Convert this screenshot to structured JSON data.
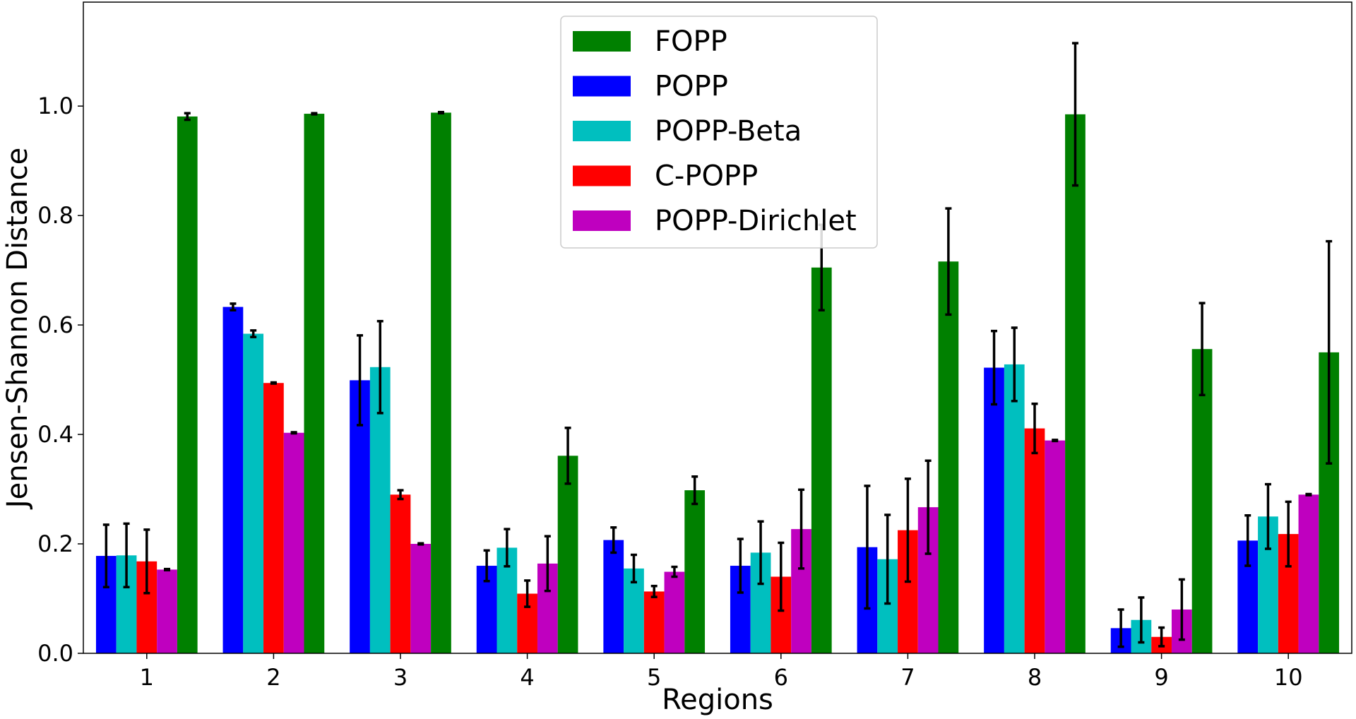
{
  "chart_data": {
    "type": "bar",
    "title": "",
    "xlabel": "Regions",
    "ylabel": "Jensen-Shannon Distance",
    "categories": [
      "1",
      "2",
      "3",
      "4",
      "5",
      "6",
      "7",
      "8",
      "9",
      "10"
    ],
    "ylim": [
      0,
      1.19
    ],
    "yticks": [
      "0.0",
      "0.2",
      "0.4",
      "0.6",
      "0.8",
      "1.0"
    ],
    "grid": false,
    "legend_position": "top-center",
    "series": [
      {
        "name": "POPP",
        "color": "#0000ff",
        "values": [
          0.178,
          0.633,
          0.499,
          0.16,
          0.207,
          0.16,
          0.194,
          0.522,
          0.046,
          0.206
        ],
        "errors": [
          0.057,
          0.006,
          0.082,
          0.028,
          0.023,
          0.049,
          0.112,
          0.067,
          0.034,
          0.046
        ]
      },
      {
        "name": "POPP-Beta",
        "color": "#00bfbf",
        "values": [
          0.179,
          0.584,
          0.523,
          0.193,
          0.155,
          0.184,
          0.172,
          0.528,
          0.061,
          0.25
        ],
        "errors": [
          0.058,
          0.006,
          0.084,
          0.034,
          0.025,
          0.057,
          0.081,
          0.067,
          0.041,
          0.059
        ]
      },
      {
        "name": "C-POPP",
        "color": "#ff0000",
        "values": [
          0.168,
          0.494,
          0.29,
          0.109,
          0.113,
          0.14,
          0.225,
          0.411,
          0.03,
          0.218
        ],
        "errors": [
          0.058,
          0.001,
          0.008,
          0.024,
          0.01,
          0.062,
          0.094,
          0.045,
          0.017,
          0.059
        ]
      },
      {
        "name": "POPP-Dirichlet",
        "color": "#bf00bf",
        "values": [
          0.153,
          0.403,
          0.2,
          0.164,
          0.149,
          0.227,
          0.267,
          0.389,
          0.08,
          0.29
        ],
        "errors": [
          0.001,
          0.001,
          0.001,
          0.05,
          0.009,
          0.072,
          0.085,
          0.001,
          0.055,
          0.001
        ]
      },
      {
        "name": "FOPP",
        "color": "#008000",
        "values": [
          0.981,
          0.986,
          0.988,
          0.361,
          0.298,
          0.705,
          0.716,
          0.985,
          0.556,
          0.55
        ],
        "errors": [
          0.006,
          0.001,
          0.001,
          0.051,
          0.025,
          0.078,
          0.097,
          0.13,
          0.084,
          0.203
        ]
      }
    ],
    "legend_order": [
      "FOPP",
      "POPP",
      "POPP-Beta",
      "C-POPP",
      "POPP-Dirichlet"
    ]
  }
}
